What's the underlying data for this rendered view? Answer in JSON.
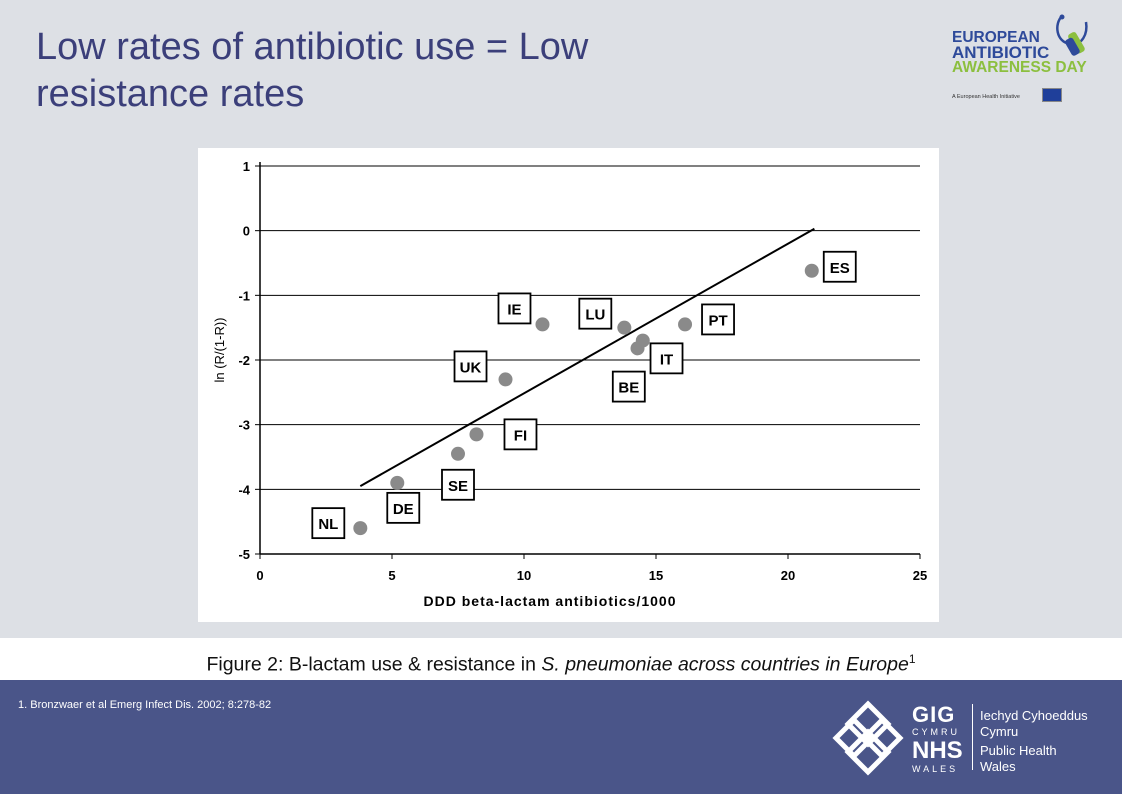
{
  "slide": {
    "title": "Low rates of antibiotic use = Low resistance rates",
    "caption_pre": "Figure 2: B-lactam use & resistance in ",
    "caption_italic": "S. pneumoniae across countries in Europe",
    "caption_sup": "1",
    "reference": "1. Bronzwaer et al Emerg Infect Dis. 2002; 8:278-82"
  },
  "eaad_logo": {
    "line1": "EUROPEAN",
    "line2": "ANTIBIOTIC",
    "line3": "AWARENESS DAY",
    "sub": "A European Health Initiative",
    "colors": {
      "blue": "#2e4a9a",
      "green": "#8cbf3f"
    }
  },
  "phw_logo": {
    "gig": "GIG",
    "cymru": "CYMRU",
    "nhs": "NHS",
    "wales": "WALES",
    "right_line1": "Iechyd Cyhoeddus",
    "right_line2": "Cymru",
    "right_line3": "Public Health",
    "right_line4": "Wales"
  },
  "chart_data": {
    "type": "scatter",
    "xlabel": "DDD beta-lactam antibiotics/1000",
    "ylabel": "ln (R/(1-R))",
    "xlim": [
      0,
      25
    ],
    "ylim": [
      -5,
      1
    ],
    "xticks": [
      0,
      5,
      10,
      15,
      20,
      25
    ],
    "yticks": [
      1,
      0,
      -1,
      -2,
      -3,
      -4,
      -5
    ],
    "grid": "horizontal",
    "points": [
      {
        "label": "NL",
        "x": 3.8,
        "y": -4.6
      },
      {
        "label": "DE",
        "x": 5.2,
        "y": -3.9
      },
      {
        "label": "SE",
        "x": 7.5,
        "y": -3.45
      },
      {
        "label": "FI",
        "x": 8.2,
        "y": -3.15
      },
      {
        "label": "UK",
        "x": 9.3,
        "y": -2.3
      },
      {
        "label": "IE",
        "x": 10.7,
        "y": -1.45
      },
      {
        "label": "LU",
        "x": 13.8,
        "y": -1.5
      },
      {
        "label": "BE",
        "x": 14.5,
        "y": -1.7
      },
      {
        "label": "IT",
        "x": 14.3,
        "y": -1.82
      },
      {
        "label": "PT",
        "x": 16.1,
        "y": -1.45
      },
      {
        "label": "ES",
        "x": 20.9,
        "y": -0.62
      }
    ],
    "trendline": {
      "x": [
        3.8,
        21.0
      ],
      "y": [
        -3.95,
        0.03
      ]
    },
    "colors": {
      "point": "#8a8a8a",
      "line": "#000000",
      "frame": "#000000"
    }
  }
}
